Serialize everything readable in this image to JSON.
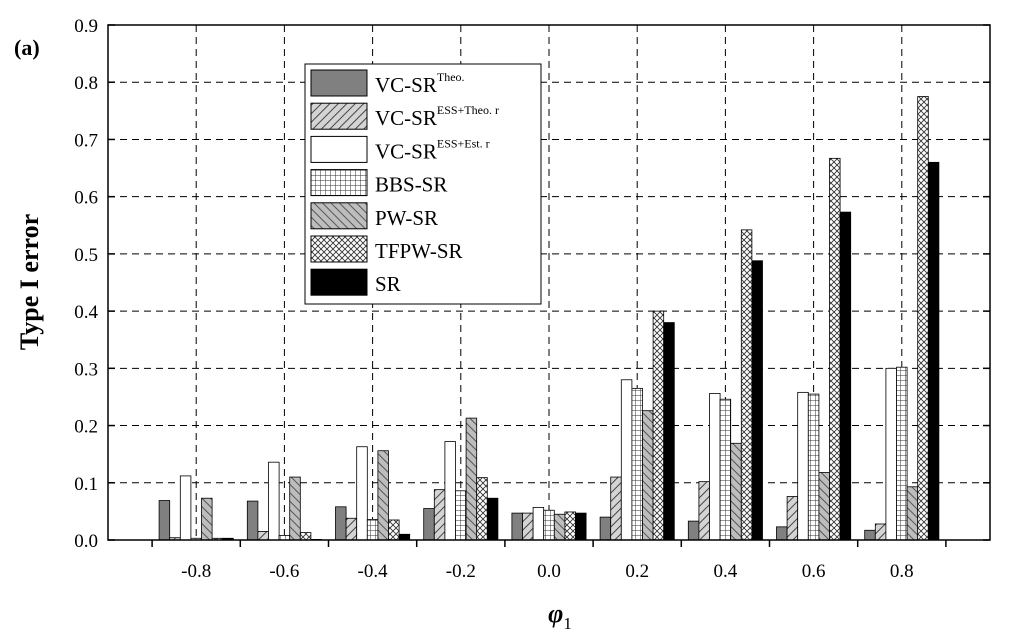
{
  "chart_data": {
    "type": "bar",
    "panel_label": "(a)",
    "ylabel": "Type  I  error",
    "xlabel_main": "φ",
    "xlabel_sub": "1",
    "ylim": [
      0,
      0.9
    ],
    "yticks": [
      "0.0",
      "0.1",
      "0.2",
      "0.3",
      "0.4",
      "0.5",
      "0.6",
      "0.7",
      "0.8",
      "0.9"
    ],
    "categories": [
      "-0.8",
      "-0.6",
      "-0.4",
      "-0.2",
      "0.0",
      "0.2",
      "0.4",
      "0.6",
      "0.8"
    ],
    "grid": true,
    "legend_position": "top-left",
    "series": [
      {
        "name": "VC-SR",
        "sup": "Theo.",
        "pattern": "solid-gray",
        "color": "#808080",
        "values": [
          0.069,
          0.068,
          0.058,
          0.055,
          0.047,
          0.04,
          0.033,
          0.023,
          0.017
        ]
      },
      {
        "name": "VC-SR",
        "sup": "ESS+Theo. r",
        "pattern": "diag-right",
        "color": "#9a9a9a",
        "values": [
          0.004,
          0.015,
          0.038,
          0.088,
          0.047,
          0.11,
          0.102,
          0.076,
          0.028
        ]
      },
      {
        "name": "VC-SR",
        "sup": "ESS+Est. r",
        "pattern": "white",
        "color": "#ffffff",
        "values": [
          0.112,
          0.136,
          0.163,
          0.172,
          0.057,
          0.28,
          0.256,
          0.258,
          0.3
        ]
      },
      {
        "name": "BBS-SR",
        "sup": "",
        "pattern": "grid",
        "color": "#ffffff",
        "values": [
          0.003,
          0.008,
          0.036,
          0.086,
          0.052,
          0.265,
          0.246,
          0.255,
          0.302
        ]
      },
      {
        "name": "PW-SR",
        "sup": "",
        "pattern": "diag-left",
        "color": "#a8a8a8",
        "values": [
          0.073,
          0.11,
          0.156,
          0.213,
          0.045,
          0.226,
          0.169,
          0.118,
          0.093
        ]
      },
      {
        "name": "TFPW-SR",
        "sup": "",
        "pattern": "cross",
        "color": "#ffffff",
        "values": [
          0.003,
          0.013,
          0.035,
          0.109,
          0.049,
          0.4,
          0.542,
          0.667,
          0.775
        ]
      },
      {
        "name": "SR",
        "sup": "",
        "pattern": "solid-black",
        "color": "#000000",
        "values": [
          0.003,
          0.001,
          0.01,
          0.073,
          0.047,
          0.38,
          0.488,
          0.573,
          0.66
        ]
      }
    ]
  }
}
